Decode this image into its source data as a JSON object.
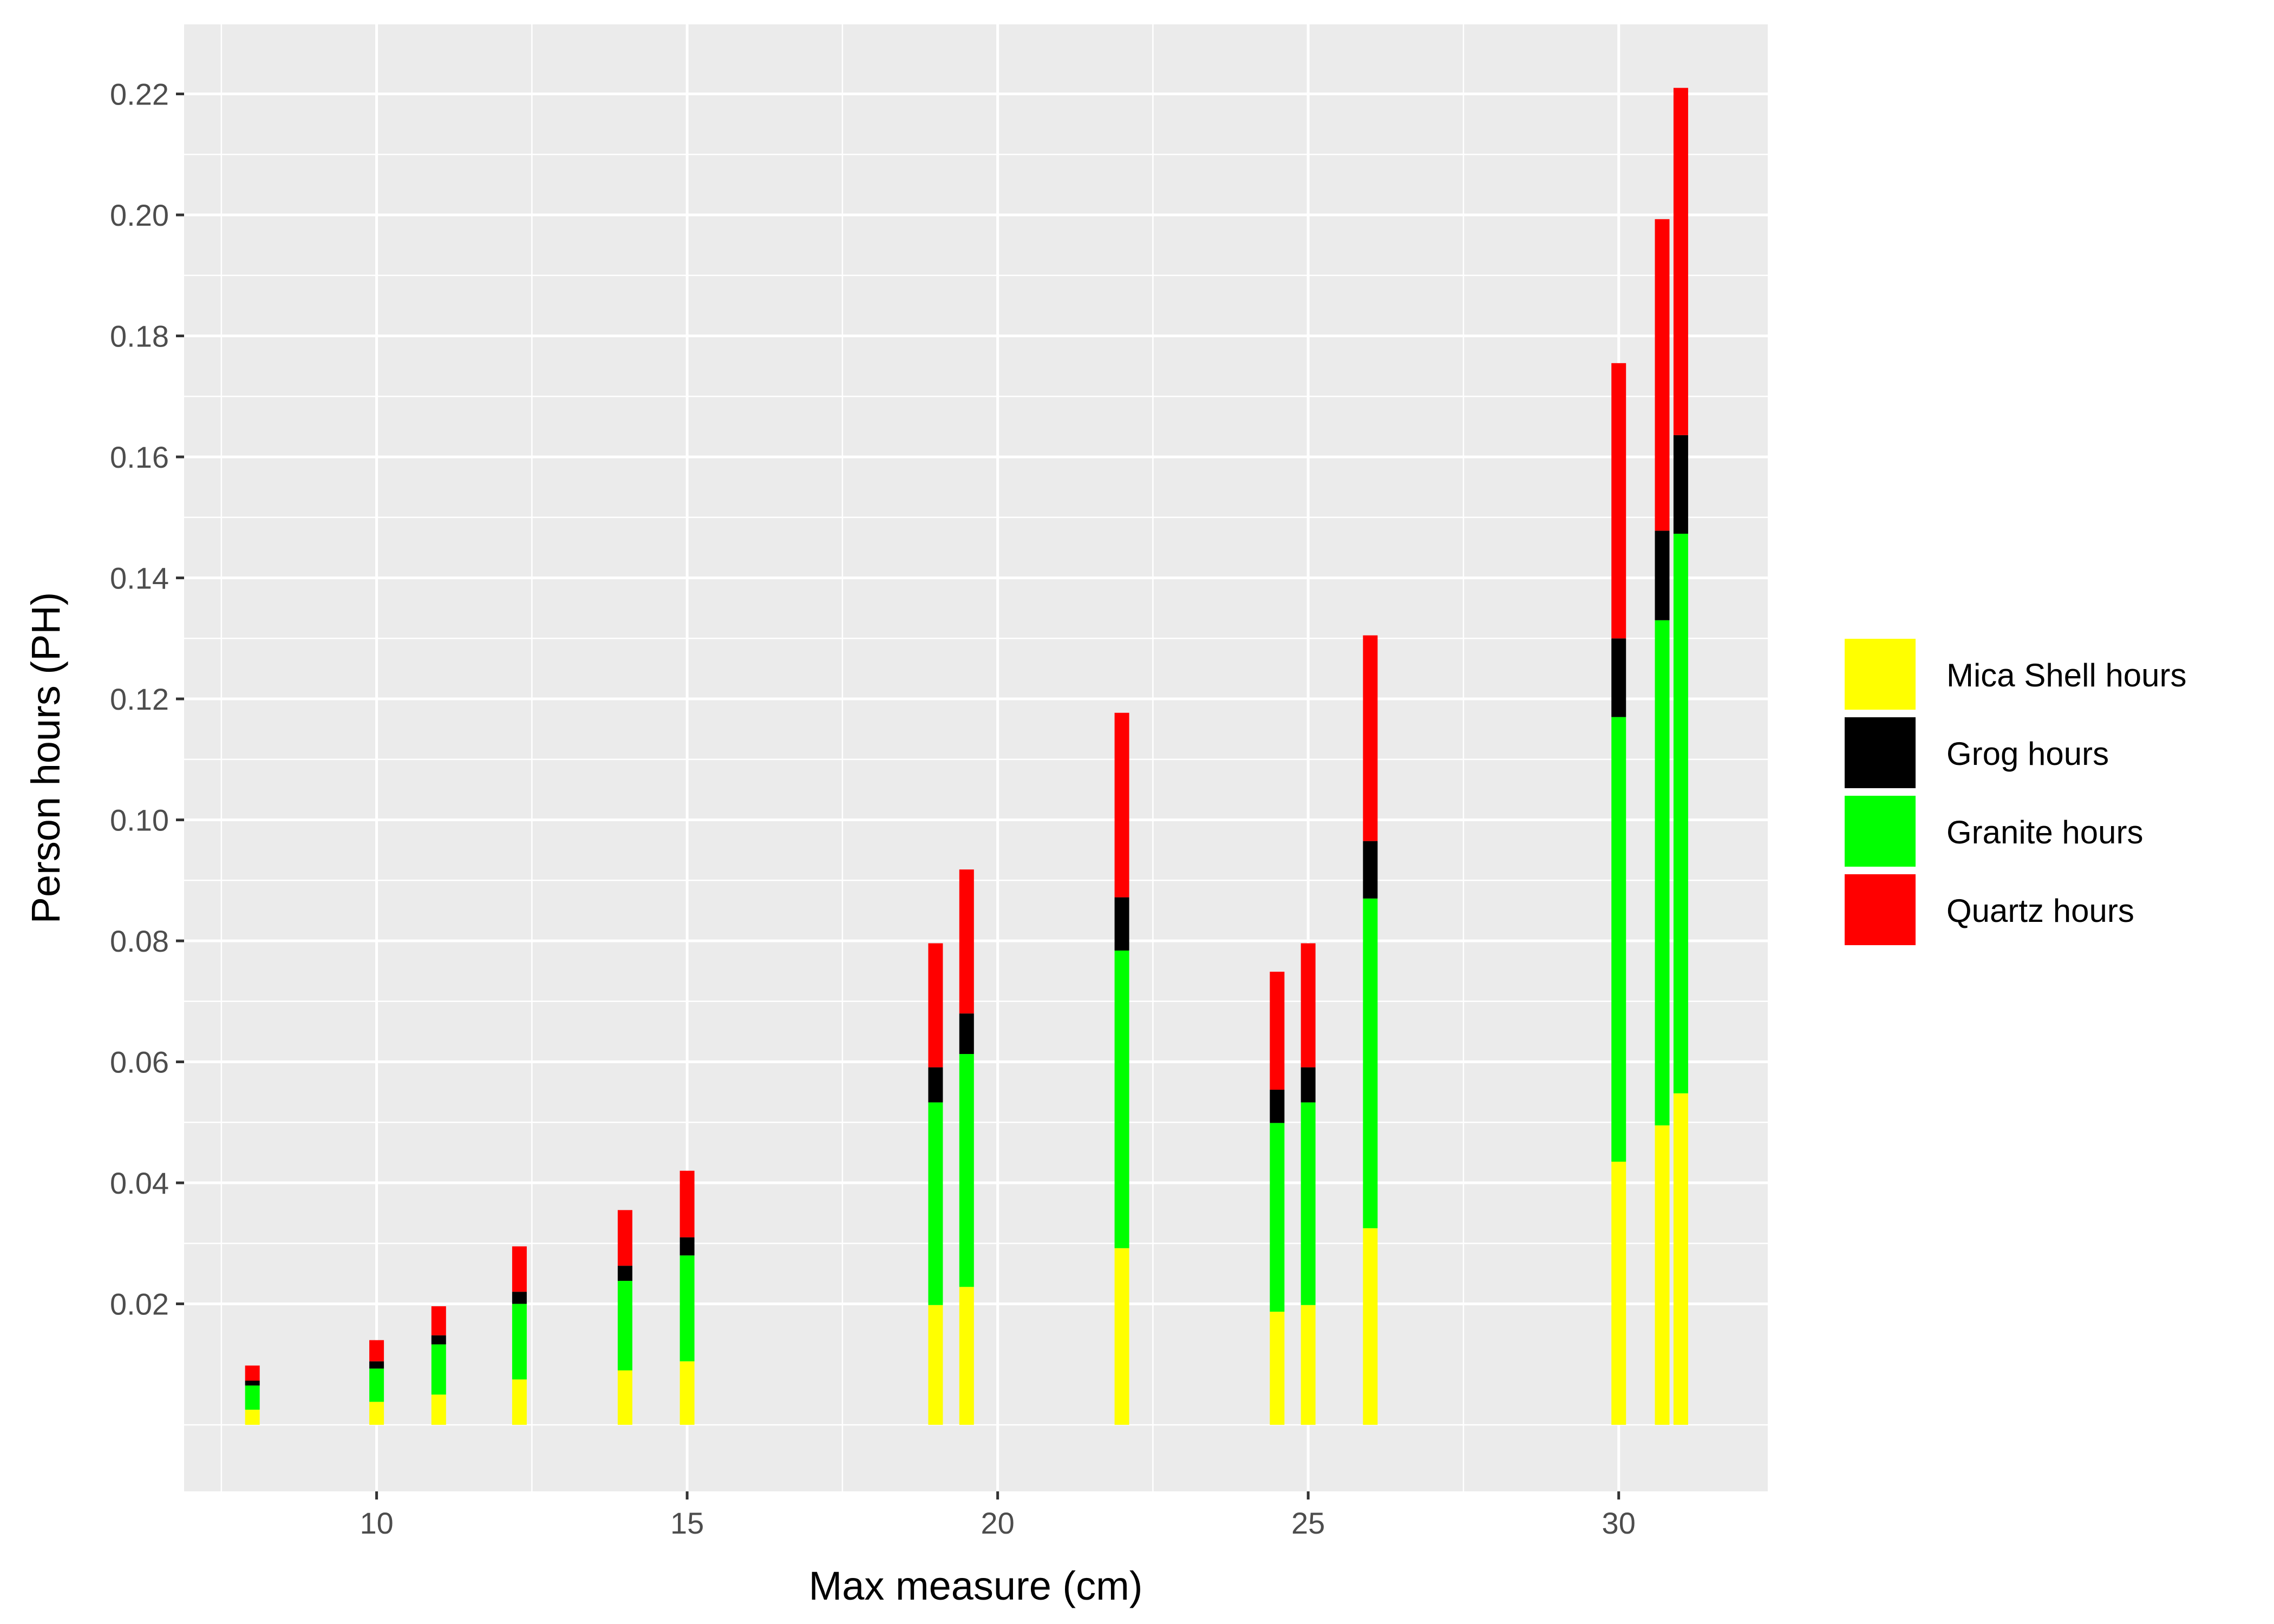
{
  "chart_data": {
    "type": "bar",
    "stacked": true,
    "xlabel": "Max measure (cm)",
    "ylabel": "Person hours (PH)",
    "xlim": [
      6.9,
      32.4
    ],
    "ylim": [
      -0.011,
      0.2315
    ],
    "x_ticks": [
      10,
      15,
      20,
      25,
      30
    ],
    "y_ticks": [
      0.02,
      0.04,
      0.06,
      0.08,
      0.1,
      0.12,
      0.14,
      0.16,
      0.18,
      0.2,
      0.22
    ],
    "y_tick_labels": [
      "0.02",
      "0.04",
      "0.06",
      "0.08",
      "0.10",
      "0.12",
      "0.14",
      "0.16",
      "0.18",
      "0.20",
      "0.22"
    ],
    "grid": true,
    "legend_position": "right",
    "x": [
      8,
      10,
      11,
      12.3,
      14,
      15,
      19,
      19.5,
      22,
      24.5,
      25,
      26,
      30,
      30.7,
      31
    ],
    "series": [
      {
        "name": "Mica Shell hours",
        "color": "#FFFF00",
        "values": [
          0.0025,
          0.0038,
          0.005,
          0.0075,
          0.009,
          0.0105,
          0.0198,
          0.0228,
          0.0292,
          0.0187,
          0.0198,
          0.0325,
          0.0435,
          0.0495,
          0.0548
        ]
      },
      {
        "name": "Grog hours",
        "color": "#000000",
        "values": [
          0.0008,
          0.0012,
          0.0015,
          0.002,
          0.0025,
          0.003,
          0.0058,
          0.0067,
          0.0088,
          0.0055,
          0.0058,
          0.0095,
          0.013,
          0.0148,
          0.0163
        ]
      },
      {
        "name": "Granite hours",
        "color": "#00FF00",
        "values": [
          0.004,
          0.0055,
          0.0083,
          0.0125,
          0.0148,
          0.0175,
          0.0335,
          0.0385,
          0.0492,
          0.0312,
          0.0335,
          0.0545,
          0.0735,
          0.0835,
          0.0925
        ]
      },
      {
        "name": "Quartz hours",
        "color": "#FF0000",
        "values": [
          0.0025,
          0.0035,
          0.0048,
          0.0075,
          0.0092,
          0.011,
          0.0205,
          0.0238,
          0.0305,
          0.0195,
          0.0205,
          0.034,
          0.0455,
          0.0515,
          0.0574
        ]
      }
    ],
    "stack_order_bottom_to_top": [
      "Mica Shell hours",
      "Granite hours",
      "Grog hours",
      "Quartz hours"
    ],
    "legend": [
      "Mica Shell hours",
      "Grog hours",
      "Granite hours",
      "Quartz hours"
    ]
  },
  "colors": {
    "panel_background": "#EBEBEB",
    "grid": "#FFFFFF",
    "tick_text": "#4D4D4D"
  }
}
